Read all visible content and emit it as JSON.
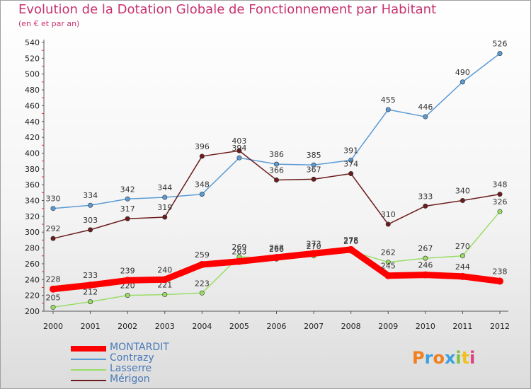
{
  "header": {
    "title": "Evolution de la Dotation Globale de Fonctionnement par Habitant",
    "subtitle": "(en € et par an)"
  },
  "logo": {
    "text": "Proxiti"
  },
  "chart_data": {
    "type": "line",
    "x": [
      "2000",
      "2001",
      "2002",
      "2003",
      "2004",
      "2005",
      "2006",
      "2007",
      "2008",
      "2009",
      "2010",
      "2011",
      "2012"
    ],
    "ylim": [
      200,
      540
    ],
    "yticks": [
      200,
      220,
      240,
      260,
      280,
      300,
      320,
      340,
      360,
      380,
      400,
      420,
      440,
      460,
      480,
      500,
      520,
      540
    ],
    "grid": false,
    "legend_position": "bottom-left",
    "series": [
      {
        "name": "MONTARDIT",
        "color": "#ff0000",
        "values": [
          228,
          233,
          239,
          240,
          259,
          263,
          268,
          273,
          278,
          245,
          246,
          244,
          238
        ]
      },
      {
        "name": "Contrazy",
        "color": "#5b9bd5",
        "values": [
          330,
          334,
          342,
          344,
          348,
          394,
          386,
          385,
          391,
          455,
          446,
          490,
          526
        ]
      },
      {
        "name": "Lasserre",
        "color": "#99dd66",
        "values": [
          205,
          212,
          220,
          221,
          223,
          269,
          266,
          270,
          276,
          262,
          267,
          270,
          326
        ]
      },
      {
        "name": "Mérigon",
        "color": "#6b1c1c",
        "values": [
          292,
          303,
          317,
          319,
          396,
          403,
          366,
          367,
          374,
          310,
          333,
          340,
          348
        ]
      }
    ]
  }
}
